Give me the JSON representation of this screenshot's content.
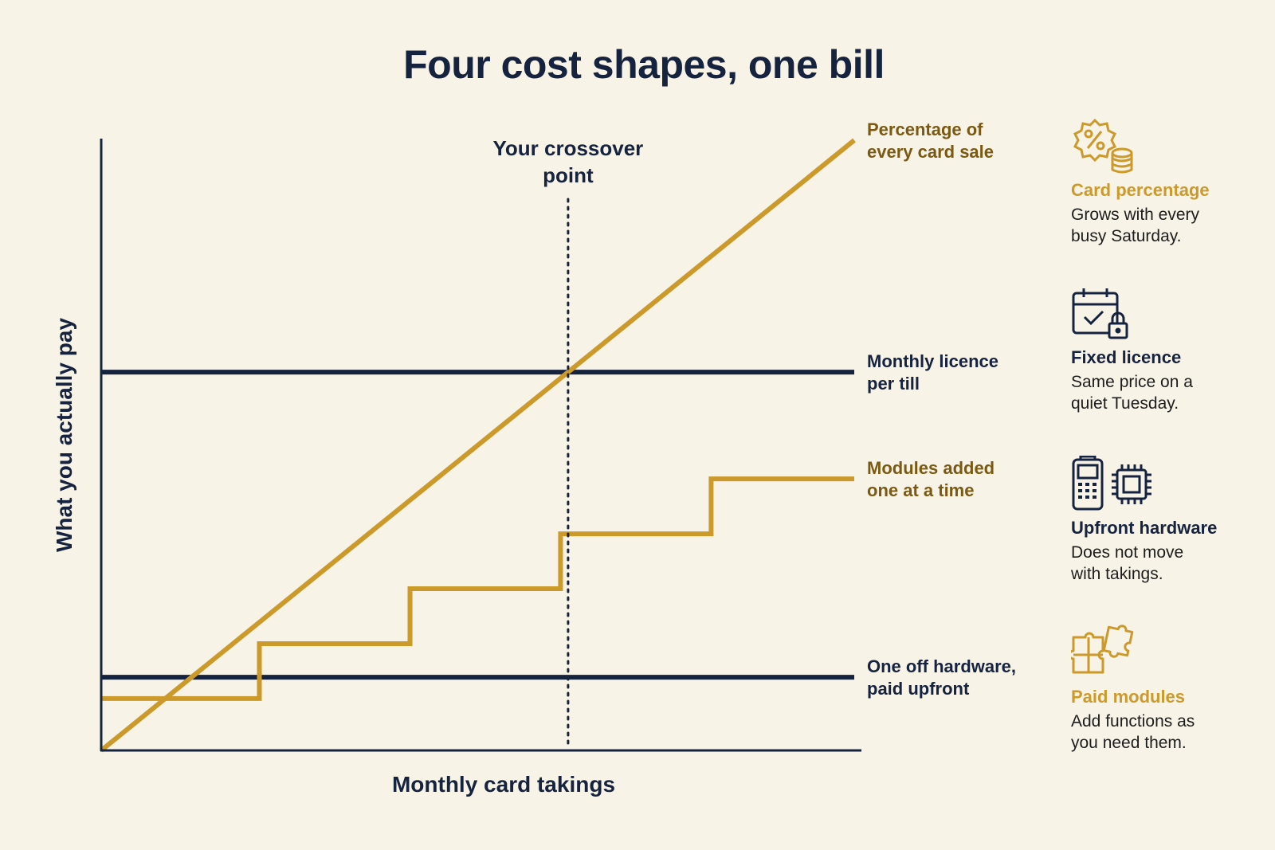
{
  "title": "Four cost shapes, one bill",
  "colors": {
    "navy": "#16233f",
    "gold": "#cc9a2b",
    "gold_text": "#7a5a13",
    "background": "#f8f3e7"
  },
  "chart_data": {
    "type": "line",
    "title": "Four cost shapes, one bill",
    "xlabel": "Monthly card takings",
    "ylabel": "What you actually pay",
    "axis_ticks": "none",
    "xlim": [
      0,
      10
    ],
    "ylim": [
      0,
      10
    ],
    "series": [
      {
        "key": "card_percentage",
        "name": "Percentage of every card sale",
        "label_lines": [
          "Percentage of",
          "every card sale"
        ],
        "color": "#cc9a2b",
        "x": [
          0,
          10
        ],
        "y": [
          0,
          10
        ]
      },
      {
        "key": "licence",
        "name": "Monthly licence per till",
        "label_lines": [
          "Monthly licence",
          "per till"
        ],
        "color": "#16233f",
        "x": [
          0,
          10
        ],
        "y": [
          6.2,
          6.2
        ]
      },
      {
        "key": "modules",
        "name": "Modules added one at a time",
        "label_lines": [
          "Modules added",
          "one at a time"
        ],
        "color": "#cc9a2b",
        "step": true,
        "x": [
          0,
          2.1,
          2.1,
          4.1,
          4.1,
          6.1,
          6.1,
          8.1,
          8.1,
          10
        ],
        "y": [
          0.85,
          0.85,
          1.75,
          1.75,
          2.65,
          2.65,
          3.55,
          3.55,
          4.45,
          4.45
        ]
      },
      {
        "key": "hardware",
        "name": "One off hardware, paid upfront",
        "label_lines": [
          "One off hardware,",
          "paid upfront"
        ],
        "color": "#16233f",
        "x": [
          0,
          10
        ],
        "y": [
          1.2,
          1.2
        ]
      }
    ],
    "annotations": [
      {
        "type": "vline",
        "x": 6.2,
        "style": "dotted",
        "label_lines": [
          "Your crossover",
          "point"
        ]
      }
    ]
  },
  "legend": [
    {
      "key": "card_percentage",
      "icon": "percent-coins-icon",
      "heading": "Card percentage",
      "heading_color": "#cc9a2b",
      "desc_lines": [
        "Grows with every",
        "busy Saturday."
      ]
    },
    {
      "key": "licence",
      "icon": "calendar-lock-icon",
      "heading": "Fixed licence",
      "heading_color": "#16233f",
      "desc_lines": [
        "Same price on a",
        "quiet Tuesday."
      ]
    },
    {
      "key": "hardware",
      "icon": "card-terminal-chip-icon",
      "heading": "Upfront hardware",
      "heading_color": "#16233f",
      "desc_lines": [
        "Does not move",
        "with takings."
      ]
    },
    {
      "key": "modules",
      "icon": "puzzle-pieces-icon",
      "heading": "Paid modules",
      "heading_color": "#cc9a2b",
      "desc_lines": [
        "Add functions as",
        "you need them."
      ]
    }
  ]
}
